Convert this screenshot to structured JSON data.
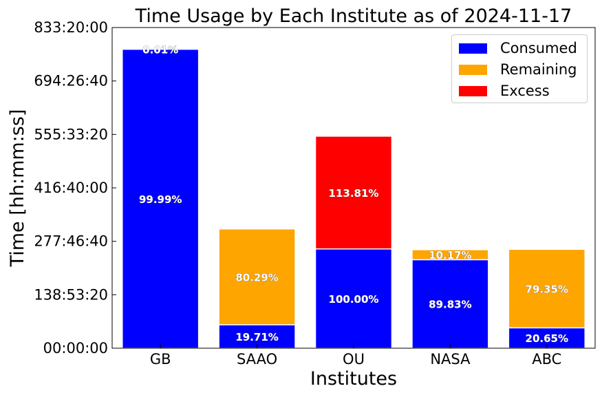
{
  "chart_data": {
    "type": "bar",
    "stacked": true,
    "title": "Time Usage by Each Institute as of 2024-11-17",
    "xlabel": "Institutes",
    "ylabel": "Time [hh:mm:ss]",
    "categories": [
      "GB",
      "SAAO",
      "OU",
      "NASA",
      "ABC"
    ],
    "y_unit": "hours",
    "ylim": [
      0,
      833.3333
    ],
    "yticks": [
      0,
      138.8889,
      277.7778,
      416.6667,
      555.5556,
      694.4444,
      833.3333
    ],
    "ytick_labels": [
      "00:00:00",
      "138:53:20",
      "277:46:40",
      "416:40:00",
      "555:33:20",
      "694:26:40",
      "833:20:00"
    ],
    "series": [
      {
        "name": "Consumed",
        "color": "#0000ff",
        "values": [
          777,
          61,
          258,
          230,
          53
        ],
        "labels": [
          "99.99%",
          "19.71%",
          "100.00%",
          "89.83%",
          "20.65%"
        ]
      },
      {
        "name": "Remaining",
        "color": "#ffa500",
        "values": [
          0.08,
          249,
          0,
          26,
          204
        ],
        "labels": [
          "0.01%",
          "80.29%",
          "",
          "10.17%",
          "79.35%"
        ]
      },
      {
        "name": "Excess",
        "color": "#ff0000",
        "values": [
          0,
          0,
          293,
          0,
          0
        ],
        "labels": [
          "",
          "",
          "113.81%",
          "",
          ""
        ]
      }
    ],
    "legend_position": "top-right",
    "grid": false
  }
}
